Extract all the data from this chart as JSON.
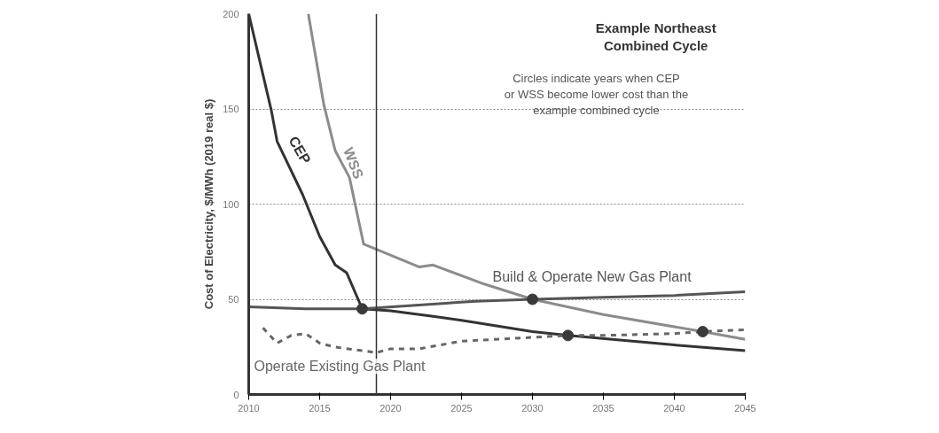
{
  "chart_data": {
    "type": "line",
    "title": "Example Northeast Combined Cycle",
    "ylabel": "Cost of Electricity, $/MWh (2019 real $)",
    "annotations": [
      "Circles indicate years when CEP or WSS become lower cost than the example combined cycle"
    ],
    "xlim": [
      2010,
      2045
    ],
    "xticks": [
      2010,
      2015,
      2020,
      2025,
      2030,
      2035,
      2040,
      2045
    ],
    "ylim": [
      0,
      200
    ],
    "yticks": [
      0,
      50,
      100,
      150,
      200
    ],
    "grid": "y",
    "marker": "none",
    "ref_lines": [
      {
        "axis": "x",
        "value": 2019,
        "label": null,
        "color": "#333333",
        "line_style": "solid"
      }
    ],
    "series": [
      {
        "name": "CEP",
        "color": "#333333",
        "line_style": "solid",
        "x": [
          2010,
          2011.6,
          2012,
          2013.8,
          2015,
          2016.1,
          2016.9,
          2018,
          2020,
          2023,
          2025,
          2030,
          2032.5,
          2040,
          2045
        ],
        "values": [
          200,
          149,
          133,
          105,
          83,
          68,
          64,
          45,
          44,
          41,
          39,
          33,
          31,
          26,
          23
        ]
      },
      {
        "name": "WSS",
        "color": "#8c8c8c",
        "line_style": "solid",
        "x": [
          2014.2,
          2015.3,
          2016.1,
          2017.1,
          2018.1,
          2022,
          2023,
          2026.6,
          2030,
          2035,
          2042,
          2045
        ],
        "values": [
          200,
          152,
          128,
          114,
          79,
          67,
          68,
          58,
          50,
          42,
          33,
          29
        ]
      },
      {
        "name": "Build & Operate New Gas Plant",
        "color": "#555555",
        "line_style": "solid",
        "x": [
          2010,
          2014,
          2018,
          2022,
          2026,
          2030,
          2035,
          2040,
          2045
        ],
        "values": [
          46,
          45,
          45,
          47,
          49,
          50,
          51,
          52,
          54
        ]
      },
      {
        "name": "Operate Existing Gas Plant",
        "color": "#666666",
        "line_style": "dashed",
        "x": [
          2011,
          2012,
          2013,
          2014,
          2015,
          2016,
          2017,
          2018,
          2019,
          2020,
          2022,
          2025,
          2030,
          2032.5,
          2035,
          2040,
          2042,
          2045
        ],
        "values": [
          35,
          27,
          31,
          32,
          27,
          25,
          24,
          23,
          22,
          24,
          24,
          28,
          30,
          31,
          31,
          32,
          33,
          34
        ]
      },
      {
        "type": "scatter",
        "marker": "circle",
        "color": "#3a3a3a",
        "x": [
          2018,
          2030,
          2032.5,
          2042
        ],
        "values": [
          45,
          50,
          31,
          33
        ]
      }
    ]
  }
}
